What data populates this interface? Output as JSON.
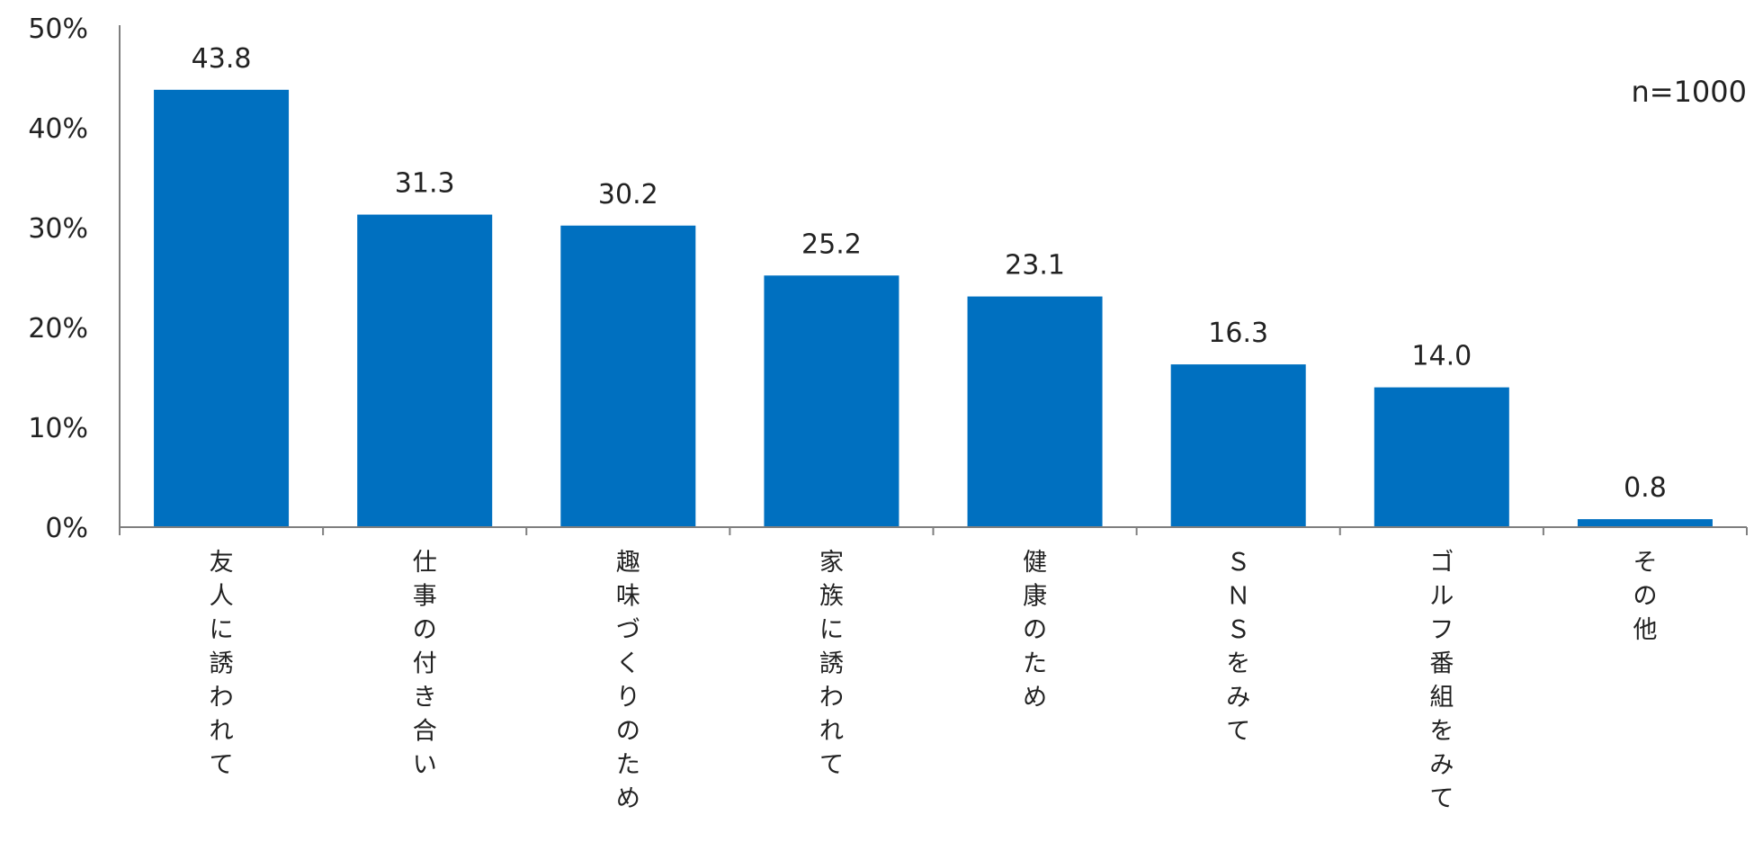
{
  "chart_data": {
    "type": "bar",
    "categories": [
      "友人に誘われて",
      "仕事の付き合い",
      "趣味づくりのため",
      "家族に誘われて",
      "健康のため",
      "ＳＮＳをみて",
      "ゴルフ番組をみて",
      "その他"
    ],
    "values": [
      43.8,
      31.3,
      30.2,
      25.2,
      23.1,
      16.3,
      14.0,
      0.8
    ],
    "value_labels": [
      "43.8",
      "31.3",
      "30.2",
      "25.2",
      "23.1",
      "16.3",
      "14.0",
      "0.8"
    ],
    "y_ticks": [
      {
        "value": 0,
        "label": "0%"
      },
      {
        "value": 10,
        "label": "10%"
      },
      {
        "value": 20,
        "label": "20%"
      },
      {
        "value": 30,
        "label": "30%"
      },
      {
        "value": 40,
        "label": "40%"
      },
      {
        "value": 50,
        "label": "50%"
      }
    ],
    "ylim": [
      0,
      50
    ],
    "grid": false,
    "legend": "none",
    "bar_color": "#0070C0",
    "axis_color": "#7F7F7F",
    "note": "n=1000",
    "title": "",
    "xlabel": "",
    "ylabel": ""
  }
}
